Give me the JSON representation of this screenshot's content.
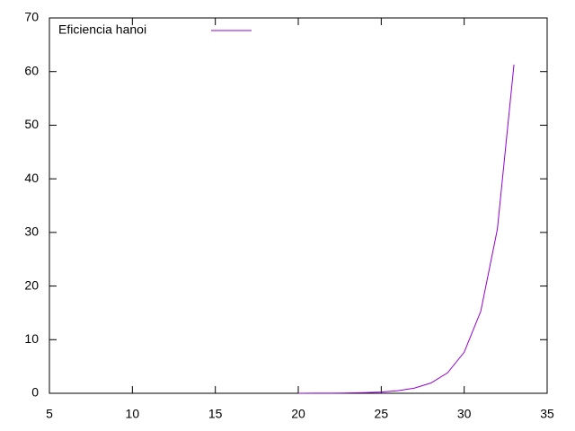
{
  "chart_data": {
    "type": "line",
    "x": [
      20,
      21,
      22,
      23,
      24,
      25,
      26,
      27,
      28,
      29,
      30,
      31,
      32,
      33
    ],
    "series": [
      {
        "name": "Eficiencia hanoi",
        "color": "#9400d3",
        "values": [
          0.0075,
          0.015,
          0.03,
          0.06,
          0.12,
          0.24,
          0.48,
          0.96,
          1.92,
          3.83,
          7.66,
          15.3,
          30.6,
          61.3
        ]
      }
    ],
    "xlim": [
      5,
      35
    ],
    "xticks": [
      5,
      10,
      15,
      20,
      25,
      30,
      35
    ],
    "ylim": [
      0,
      70
    ],
    "yticks": [
      0,
      10,
      20,
      30,
      40,
      50,
      60,
      70
    ],
    "grid": false,
    "legend": "top-left"
  }
}
